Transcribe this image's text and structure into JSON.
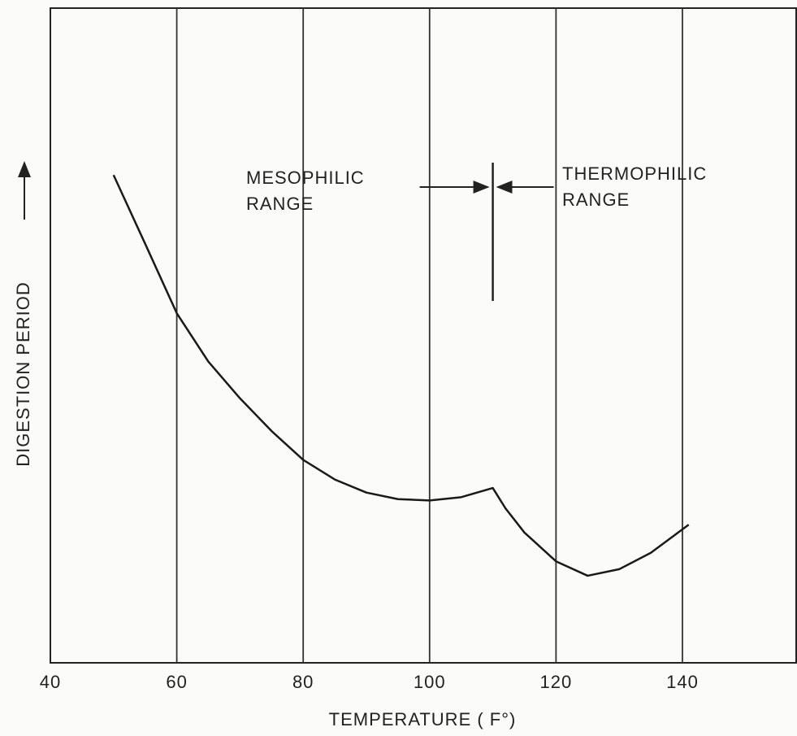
{
  "chart_data": {
    "type": "line",
    "x_label": "TEMPERATURE ( F°)",
    "y_label": "DIGESTION PERIOD",
    "xlim": [
      40,
      158
    ],
    "xticks": [
      40,
      60,
      80,
      100,
      120,
      140
    ],
    "ylim": [
      0,
      100
    ],
    "grid": true,
    "x": [
      50,
      55,
      60,
      65,
      70,
      75,
      80,
      85,
      90,
      95,
      100,
      105,
      110,
      112,
      115,
      120,
      125,
      130,
      135,
      141
    ],
    "series": [
      {
        "color": "#1a1a1a",
        "values": [
          74.5,
          64,
          53.4,
          46,
          40.4,
          35.4,
          31,
          28,
          26,
          25,
          24.8,
          25.3,
          26.7,
          23.6,
          19.9,
          15.5,
          13.3,
          14.3,
          16.8,
          21.1
        ]
      }
    ],
    "range_boundary": 110,
    "annotations": [
      {
        "lines": [
          "MESOPHILIC",
          "RANGE"
        ]
      },
      {
        "lines": [
          "THERMOPHILIC",
          "RANGE"
        ]
      }
    ]
  }
}
